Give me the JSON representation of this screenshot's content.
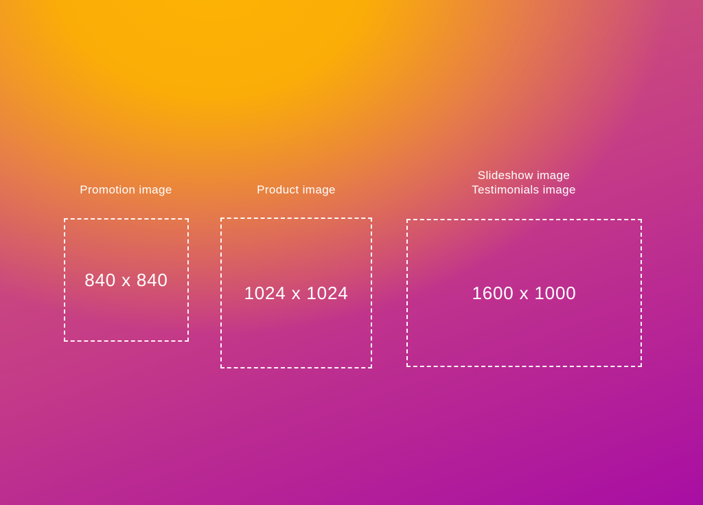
{
  "background": {
    "glow_color": "#FCB303",
    "top_left_color": "#F2A30B",
    "mid_color": "#CD5470",
    "bottom_left_color": "#BC2694",
    "bottom_right_color": "#A80EA3",
    "text_color": "#FFFFFF",
    "border_color": "#FFFFFF"
  },
  "placeholders": [
    {
      "labels": [
        "Promotion image"
      ],
      "size_label": "840 x 840"
    },
    {
      "labels": [
        "Product image"
      ],
      "size_label": "1024 x 1024"
    },
    {
      "labels": [
        "Slideshow image",
        "Testimonials image"
      ],
      "size_label": "1600 x 1000"
    }
  ]
}
